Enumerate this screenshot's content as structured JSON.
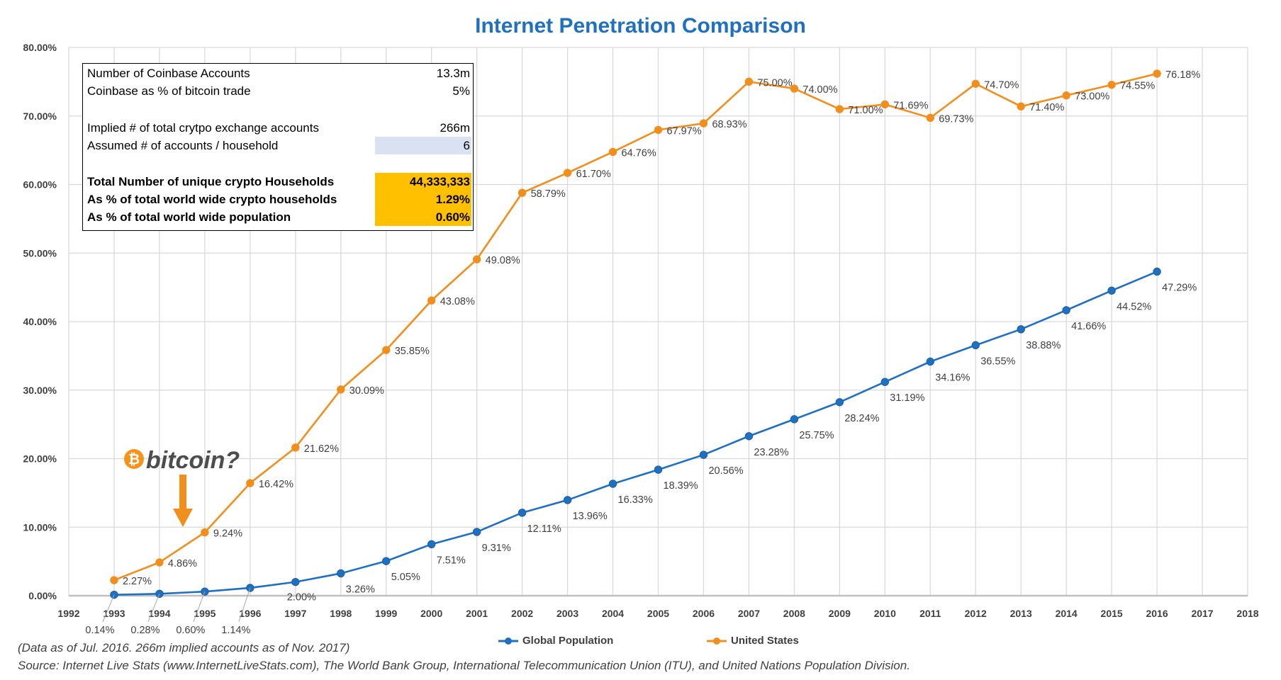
{
  "chart_data": {
    "type": "line",
    "title": "Internet Penetration Comparison",
    "x": [
      1993,
      1994,
      1995,
      1996,
      1997,
      1998,
      1999,
      2000,
      2001,
      2002,
      2003,
      2004,
      2005,
      2006,
      2007,
      2008,
      2009,
      2010,
      2011,
      2012,
      2013,
      2014,
      2015,
      2016
    ],
    "xlim": [
      1992,
      2018
    ],
    "x_ticks": [
      "1992",
      "1993",
      "1994",
      "1995",
      "1996",
      "1997",
      "1998",
      "1999",
      "2000",
      "2001",
      "2002",
      "2003",
      "2004",
      "2005",
      "2006",
      "2007",
      "2008",
      "2009",
      "2010",
      "2011",
      "2012",
      "2013",
      "2014",
      "2015",
      "2016",
      "2017",
      "2018"
    ],
    "ylim": [
      0,
      80
    ],
    "y_ticks": [
      "0.00%",
      "10.00%",
      "20.00%",
      "30.00%",
      "40.00%",
      "50.00%",
      "60.00%",
      "70.00%",
      "80.00%"
    ],
    "grid": true,
    "legend_position": "bottom",
    "series": [
      {
        "name": "Global Population",
        "color": "#1f70c1",
        "values": [
          0.14,
          0.28,
          0.6,
          1.14,
          2.0,
          3.26,
          5.05,
          7.51,
          9.31,
          12.11,
          13.96,
          16.33,
          18.39,
          20.56,
          23.28,
          25.75,
          28.24,
          31.19,
          34.16,
          36.55,
          38.88,
          41.66,
          44.52,
          47.29
        ],
        "labels": [
          "0.14%",
          "0.28%",
          "0.60%",
          "1.14%",
          "2.00%",
          "3.26%",
          "5.05%",
          "7.51%",
          "9.31%",
          "12.11%",
          "13.96%",
          "16.33%",
          "18.39%",
          "20.56%",
          "23.28%",
          "25.75%",
          "28.24%",
          "31.19%",
          "34.16%",
          "36.55%",
          "38.88%",
          "41.66%",
          "44.52%",
          "47.29%"
        ]
      },
      {
        "name": "United States",
        "color": "#f28e1c",
        "values": [
          2.27,
          4.86,
          9.24,
          16.42,
          21.62,
          30.09,
          35.85,
          43.08,
          49.08,
          58.79,
          61.7,
          64.76,
          67.97,
          68.93,
          75.0,
          74.0,
          71.0,
          71.69,
          69.73,
          74.7,
          71.4,
          73.0,
          74.55,
          76.18
        ],
        "labels": [
          "2.27%",
          "4.86%",
          "9.24%",
          "16.42%",
          "21.62%",
          "30.09%",
          "35.85%",
          "43.08%",
          "49.08%",
          "58.79%",
          "61.70%",
          "64.76%",
          "67.97%",
          "68.93%",
          "75.00%",
          "74.00%",
          "71.00%",
          "71.69%",
          "69.73%",
          "74.70%",
          "71.40%",
          "73.00%",
          "74.55%",
          "76.18%"
        ]
      }
    ],
    "annotation": "bitcoin?"
  },
  "infobox": {
    "rows": [
      {
        "label": "Number of Coinbase Accounts",
        "value": "13.3m"
      },
      {
        "label": "Coinbase as % of bitcoin trade",
        "value": "5%"
      },
      {
        "label": "Implied # of total crytpo exchange accounts",
        "value": "266m"
      },
      {
        "label": "Assumed # of accounts / household",
        "value": "6"
      },
      {
        "label": "Total Number of unique crypto Households",
        "value": "44,333,333"
      },
      {
        "label": "As % of total world wide crypto households",
        "value": "1.29%"
      },
      {
        "label": "As % of total world wide population",
        "value": "0.60%"
      }
    ]
  },
  "footer": {
    "note": "(Data as of Jul. 2016. 266m implied accounts as of Nov. 2017)",
    "source": "Source: Internet Live Stats (www.InternetLiveStats.com), The World Bank Group, International Telecommunication Union (ITU), and United Nations Population Division."
  },
  "colors": {
    "title": "#1f70c1",
    "highlight_gold": "#ffc000",
    "highlight_blue": "#d9e1f2",
    "arrow": "#f28e1c"
  }
}
